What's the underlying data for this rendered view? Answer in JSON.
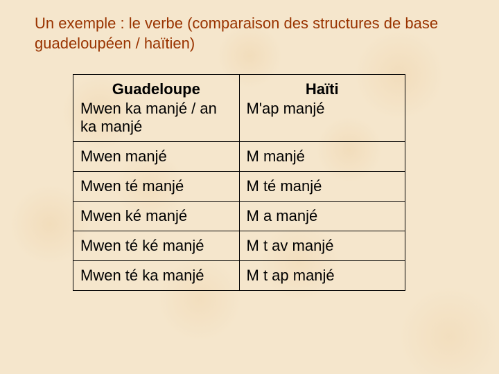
{
  "title": "Un exemple : le verbe (comparaison des structures de base guadeloupéen / haïtien)",
  "table": {
    "columns": [
      "Guadeloupe",
      "Haïti"
    ],
    "rows": [
      [
        "Mwen ka manjé / an ka manjé",
        "M'ap manjé"
      ],
      [
        "Mwen manjé",
        "M manjé"
      ],
      [
        "Mwen té manjé",
        "M té manjé"
      ],
      [
        "Mwen ké manjé",
        "M a manjé"
      ],
      [
        "Mwen té ké manjé",
        "M t av manjé"
      ],
      [
        "Mwen té ka manjé",
        "M t ap manjé"
      ]
    ],
    "border_color": "#000000",
    "background_color": "transparent",
    "font_size": 22,
    "title_color": "#993300",
    "title_fontsize": 22,
    "col_widths": [
      "50%",
      "50%"
    ]
  },
  "background_color": "#f5e6cc"
}
